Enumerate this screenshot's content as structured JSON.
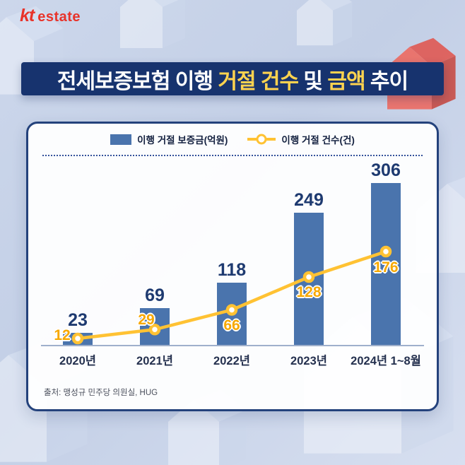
{
  "logo": {
    "kt": "kt",
    "estate": "estate"
  },
  "title": {
    "segments": [
      {
        "text": "전세보증보험 이행 ",
        "highlight": false
      },
      {
        "text": "거절 건수",
        "highlight": true
      },
      {
        "text": " 및 ",
        "highlight": false
      },
      {
        "text": "금액",
        "highlight": true
      },
      {
        "text": " 추이",
        "highlight": false
      }
    ]
  },
  "legend": {
    "bar_label": "이행 거절 보증금(억원)",
    "line_label": "이행 거절 건수(건)"
  },
  "source": "출처: 맹성규 민주당 의원실, HUG",
  "colors": {
    "banner": "#17336e",
    "highlight": "#ffd34f",
    "bar": "#4a74ad",
    "bar_label": "#1e3a70",
    "line": "#ffc233"
  },
  "chart_data": {
    "type": "bar",
    "categories": [
      "2020년",
      "2021년",
      "2022년",
      "2023년",
      "2024년 1~8월"
    ],
    "series": [
      {
        "name": "이행 거절 보증금(억원)",
        "type": "bar",
        "values": [
          23,
          69,
          118,
          249,
          306
        ]
      },
      {
        "name": "이행 거절 건수(건)",
        "type": "line",
        "values": [
          12,
          29,
          66,
          128,
          176
        ]
      }
    ],
    "ylim": [
      0,
      320
    ],
    "grid": false,
    "legend_position": "top"
  }
}
